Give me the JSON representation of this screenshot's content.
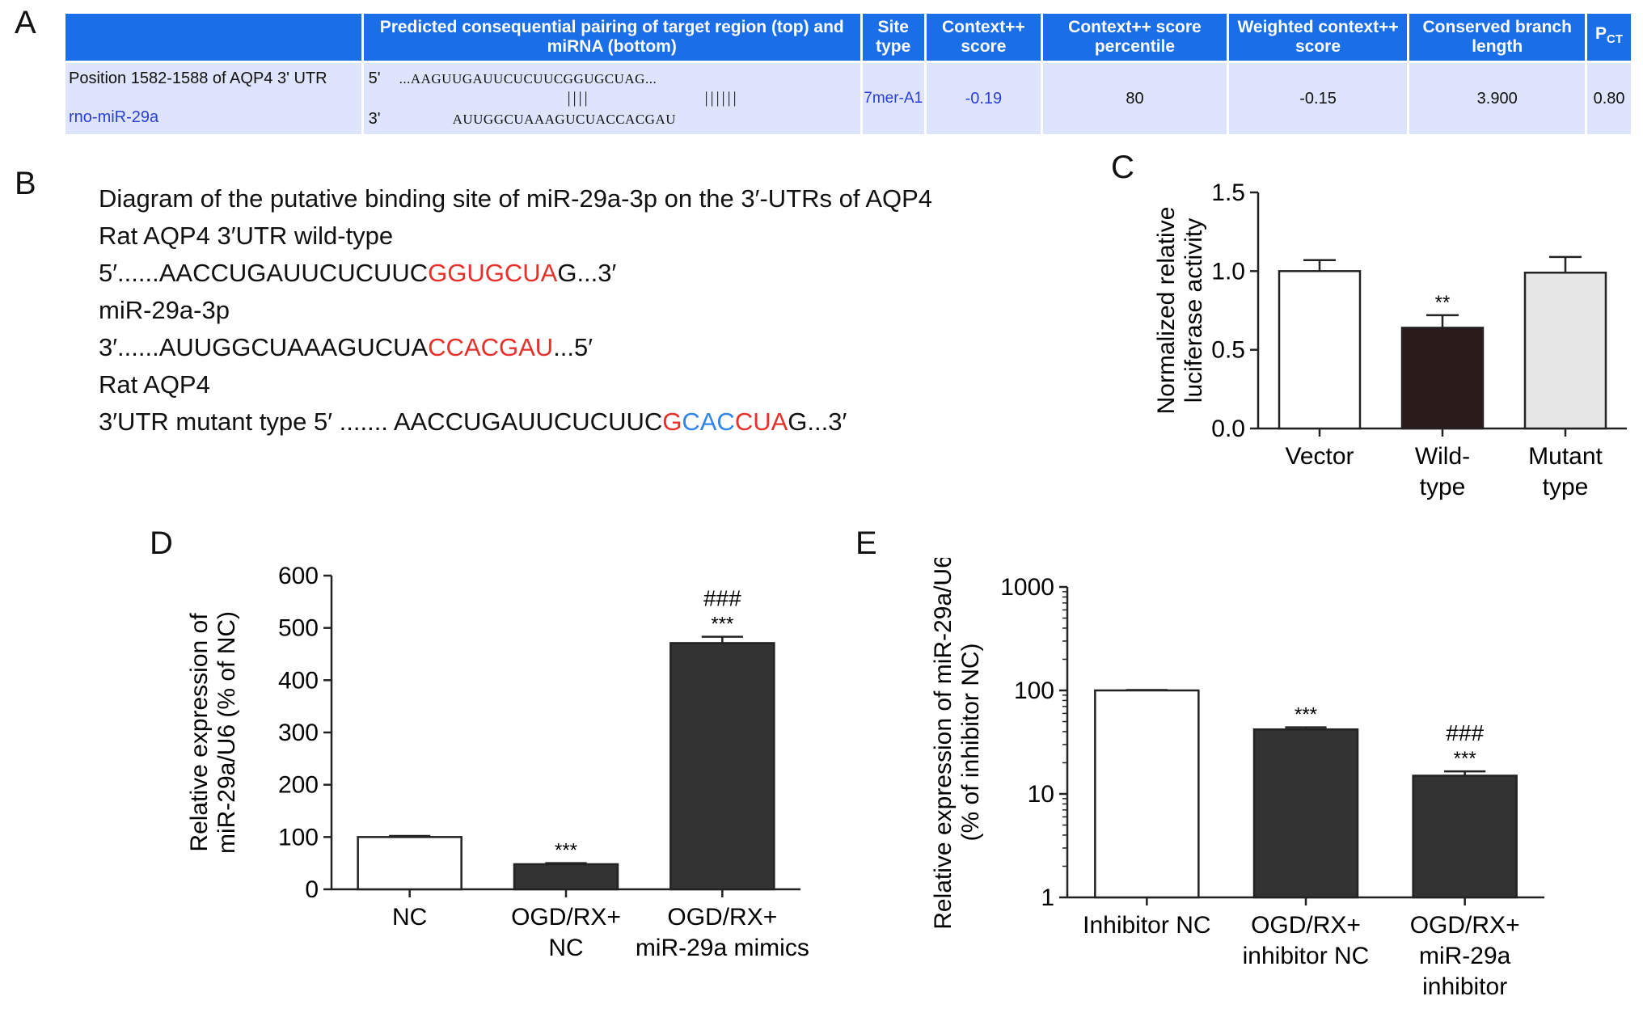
{
  "panels": {
    "a": "A",
    "b": "B",
    "c": "C",
    "d": "D",
    "e": "E"
  },
  "table_a": {
    "headers": [
      "",
      "Predicted consequential pairing of target region (top) and miRNA (bottom)",
      "Site type",
      "Context++ score",
      "Context++ score percentile",
      "Weighted context++ score",
      "Conserved branch length",
      "P"
    ],
    "pct_sub": "CT",
    "row": {
      "position": "Position 1582-1588 of AQP4 3' UTR",
      "mirna": "rno-miR-29a",
      "prime5": "5'",
      "prime3": "3'",
      "target_seq": "...AAGUUGAUUCUCUUCGGUGCUAG...",
      "pair_bars_1": "||||",
      "pair_bars_2": "||||||",
      "mirna_seq": "AUUGGCUAAAGUCUACCACGAU",
      "site_type": "7mer-A1",
      "context_score": "-0.19",
      "percentile": "80",
      "weighted": "-0.15",
      "branch_length": "3.900",
      "pct": "0.80"
    }
  },
  "panel_b": {
    "title": "Diagram of the putative binding site of miR-29a-3p on the 3′-UTRs of AQP4",
    "wt_label": "Rat AQP4 3′UTR wild-type",
    "wt_seq_pre": "5′......AACCUGAUUCUCUUC",
    "wt_seq_red": "GGUGCUA",
    "wt_seq_post": "G...3′",
    "mir_label": "miR-29a-3p",
    "mir_seq_pre": "3′......AUUGGCUAAAGUCUA",
    "mir_seq_red": "CCACGAU",
    "mir_seq_post": "...5′",
    "mut_label": "Rat AQP4",
    "mut_seq_pre": "3′UTR  mutant type 5′ ....... AACCUGAUUCUCUUC",
    "mut_seq_red1": "G",
    "mut_seq_blue": "CAC",
    "mut_seq_red2": "CUA",
    "mut_seq_post": "G...3′",
    "colors": {
      "highlight": "#e8302a",
      "mutation": "#2f86e8"
    }
  },
  "chart_data": [
    {
      "panel": "C",
      "type": "bar",
      "categories": [
        [
          "Vector"
        ],
        [
          "Wild-",
          "type"
        ],
        [
          "Mutant",
          "type"
        ]
      ],
      "values": [
        1.0,
        0.64,
        0.99
      ],
      "errors": [
        0.07,
        0.08,
        0.1
      ],
      "fills": [
        "#ffffff",
        "#2a1a1a",
        "#e6e6e6"
      ],
      "annotations": [
        "",
        "**",
        ""
      ],
      "ylabel": [
        "Normalized relative",
        "luciferase activity"
      ],
      "ylim": [
        0,
        1.5
      ],
      "yticks": [
        "0.0",
        "0.5",
        "1.0",
        "1.5"
      ]
    },
    {
      "panel": "D",
      "type": "bar",
      "categories": [
        [
          "NC"
        ],
        [
          "OGD/RX+",
          "NC"
        ],
        [
          "OGD/RX+",
          "miR-29a mimics"
        ]
      ],
      "values": [
        100,
        48,
        471
      ],
      "errors": [
        2,
        2,
        12
      ],
      "fills": [
        "#ffffff",
        "#333333",
        "#333333"
      ],
      "annotations": [
        [],
        [
          "***"
        ],
        [
          "***",
          "###"
        ]
      ],
      "ylabel": [
        "Relative expression of",
        "miR-29a/U6 (% of NC)"
      ],
      "ylim": [
        0,
        600
      ],
      "yticks": [
        "0",
        "100",
        "200",
        "300",
        "400",
        "500",
        "600"
      ]
    },
    {
      "panel": "E",
      "type": "bar",
      "scale": "log",
      "categories": [
        [
          "Inhibitor NC"
        ],
        [
          "OGD/RX+",
          "inhibitor NC"
        ],
        [
          "OGD/RX+",
          "miR-29a",
          "inhibitor"
        ]
      ],
      "values": [
        100,
        42,
        15
      ],
      "errors": [
        1,
        2,
        1.5
      ],
      "fills": [
        "#ffffff",
        "#333333",
        "#333333"
      ],
      "annotations": [
        [],
        [
          "***"
        ],
        [
          "***",
          "###"
        ]
      ],
      "ylabel": [
        "Relative expression of miR-29a/U6",
        "(% of inhibitor NC)"
      ],
      "ylim": [
        1,
        1000
      ],
      "yticks": [
        "1",
        "10",
        "100",
        "1000"
      ]
    }
  ]
}
